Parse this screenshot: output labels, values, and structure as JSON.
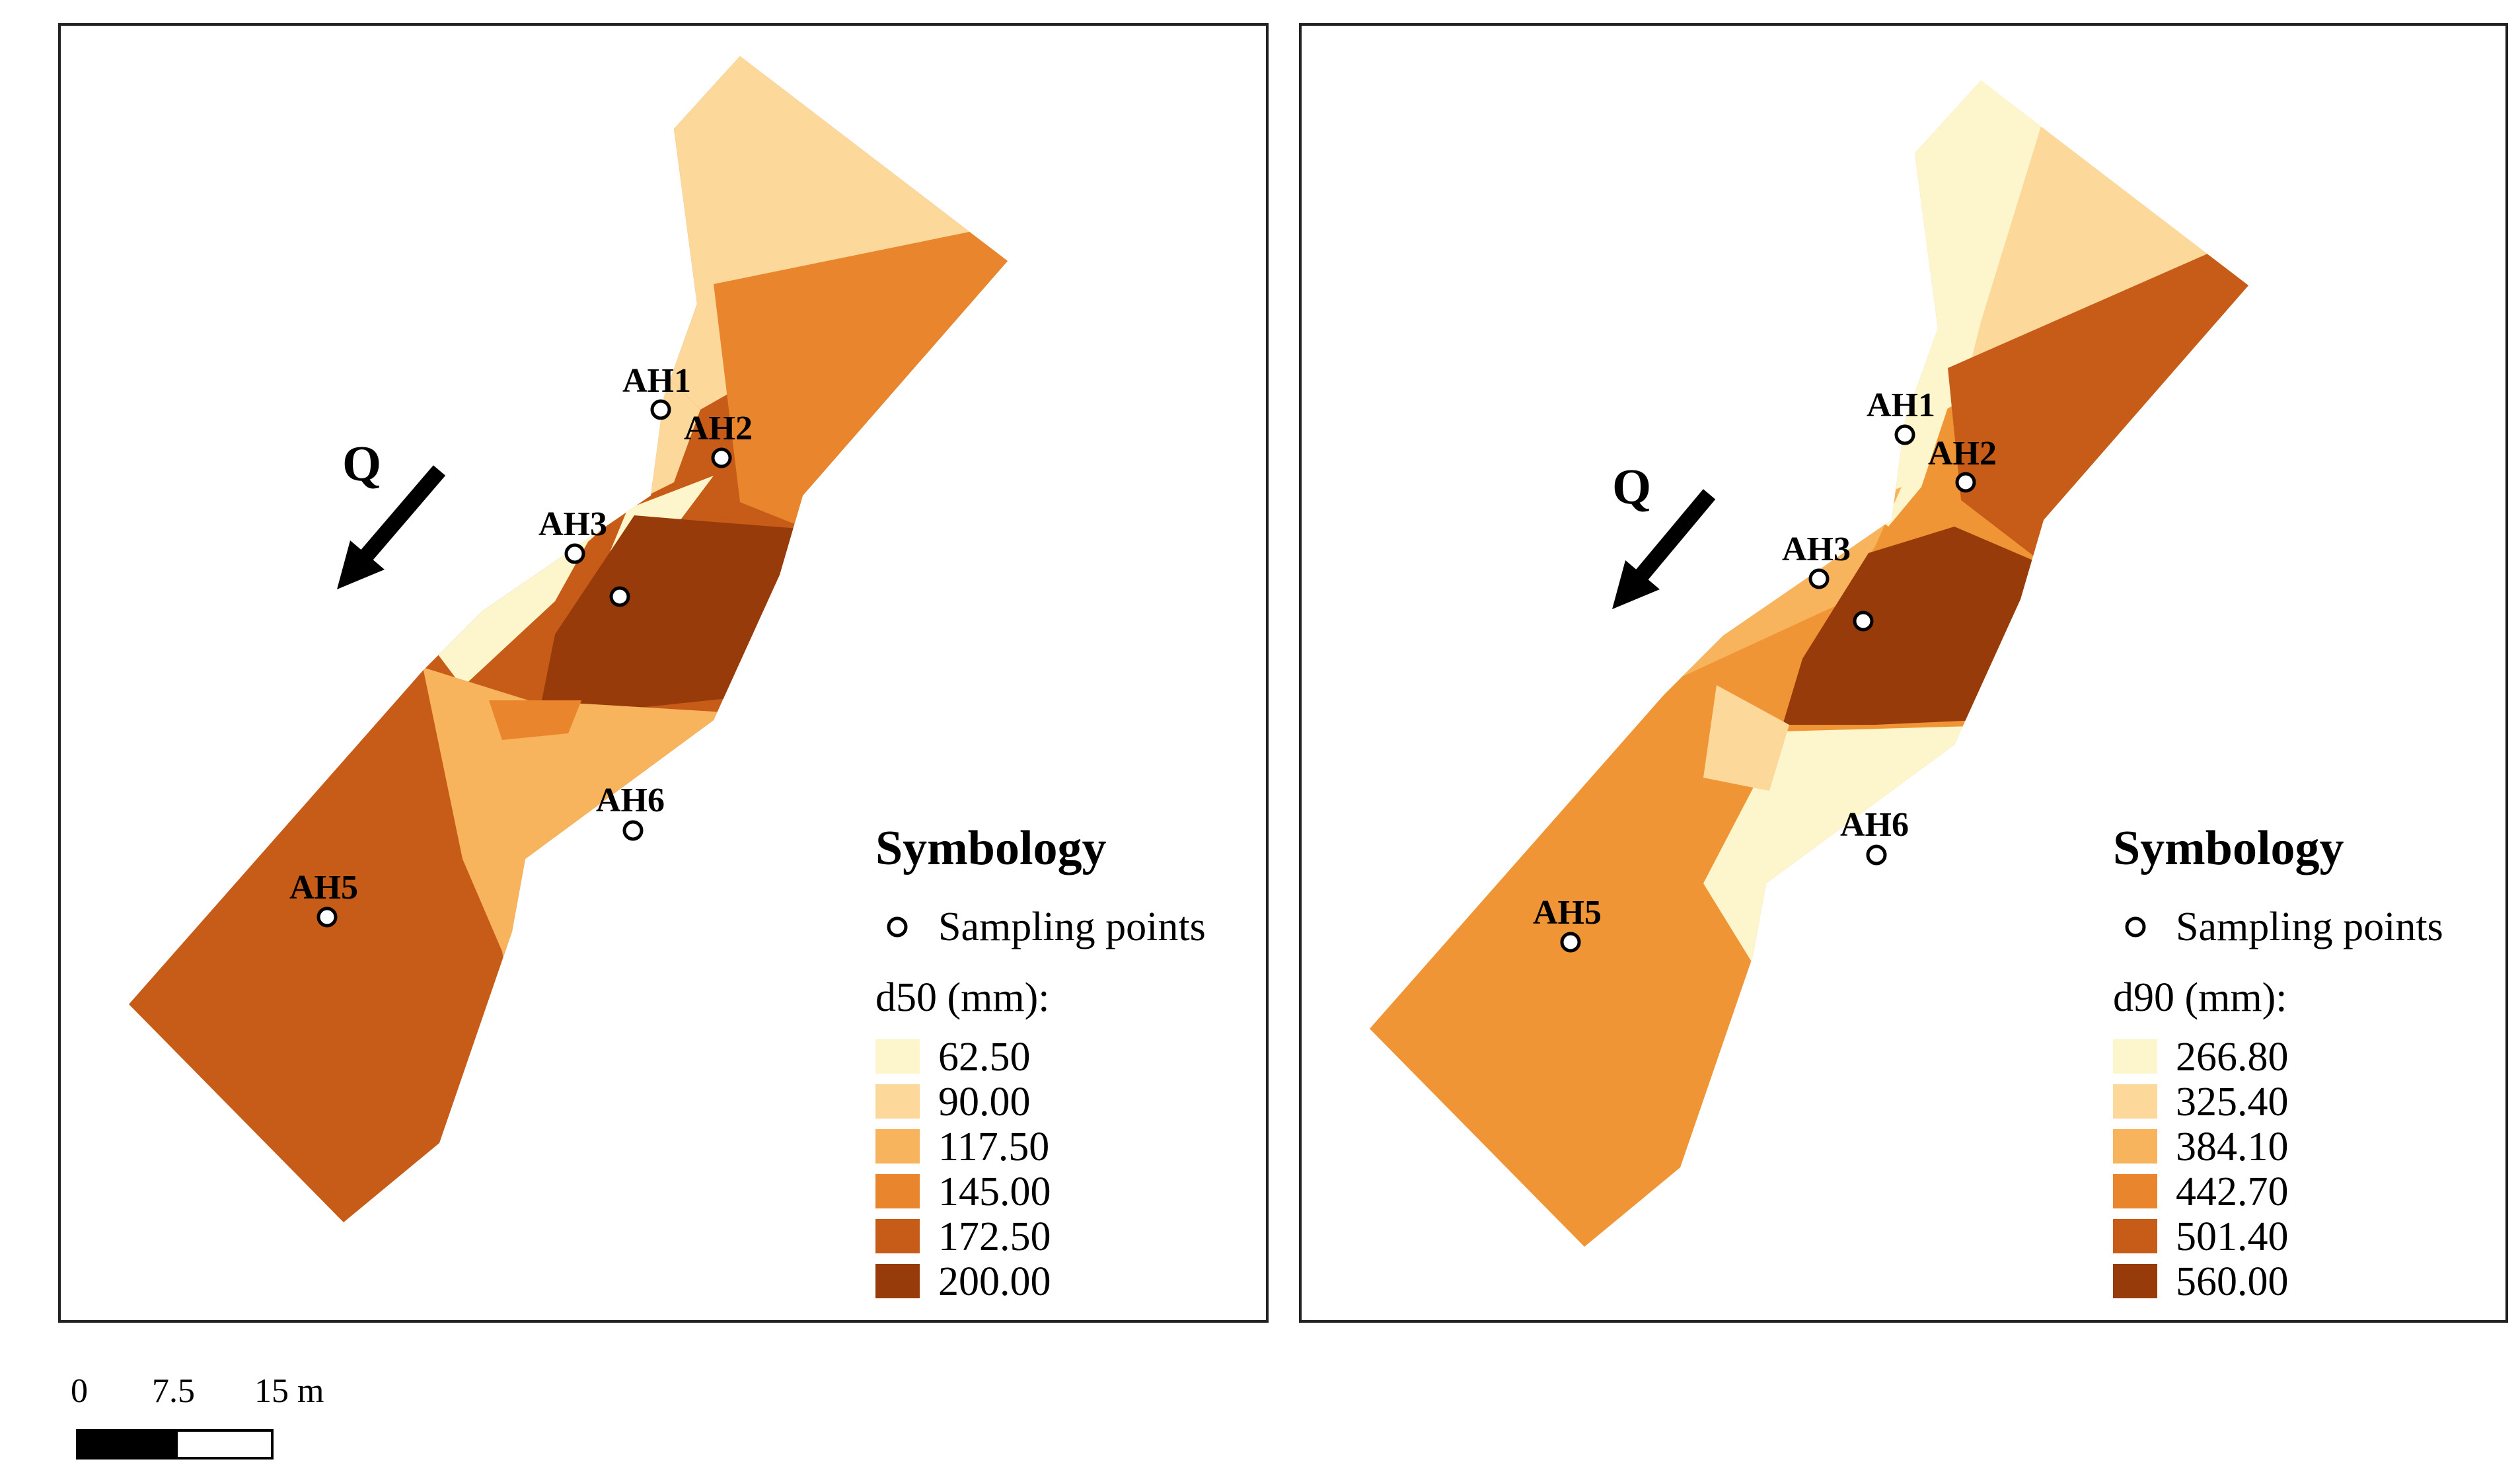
{
  "panels": [
    {
      "id": "d50",
      "symbology_title": "Symbology",
      "sampling_label": "Sampling points",
      "variable_label": "d50 (mm):",
      "flow_label": "Q",
      "legend": [
        {
          "value": "62.50",
          "color": "#fdf6cc"
        },
        {
          "value": "90.00",
          "color": "#fcd99a"
        },
        {
          "value": "117.50",
          "color": "#f8b45d"
        },
        {
          "value": "145.00",
          "color": "#e9852d"
        },
        {
          "value": "172.50",
          "color": "#c75b18"
        },
        {
          "value": "200.00",
          "color": "#983b0b"
        }
      ],
      "points": [
        "AH1",
        "AH2",
        "AH3",
        "AH6",
        "AH5"
      ]
    },
    {
      "id": "d90",
      "symbology_title": "Symbology",
      "sampling_label": "Sampling points",
      "variable_label": "d90 (mm):",
      "flow_label": "Q",
      "legend": [
        {
          "value": "266.80",
          "color": "#fdf6cc"
        },
        {
          "value": "325.40",
          "color": "#fcd99a"
        },
        {
          "value": "384.10",
          "color": "#f8b45d"
        },
        {
          "value": "442.70",
          "color": "#e9852d"
        },
        {
          "value": "501.40",
          "color": "#c75b18"
        },
        {
          "value": "560.00",
          "color": "#983b0b"
        }
      ],
      "points": [
        "AH1",
        "AH2",
        "AH3",
        "AH6",
        "AH5"
      ]
    }
  ],
  "scale_bar": {
    "labels": [
      "0",
      "7.5",
      "15 m"
    ]
  }
}
